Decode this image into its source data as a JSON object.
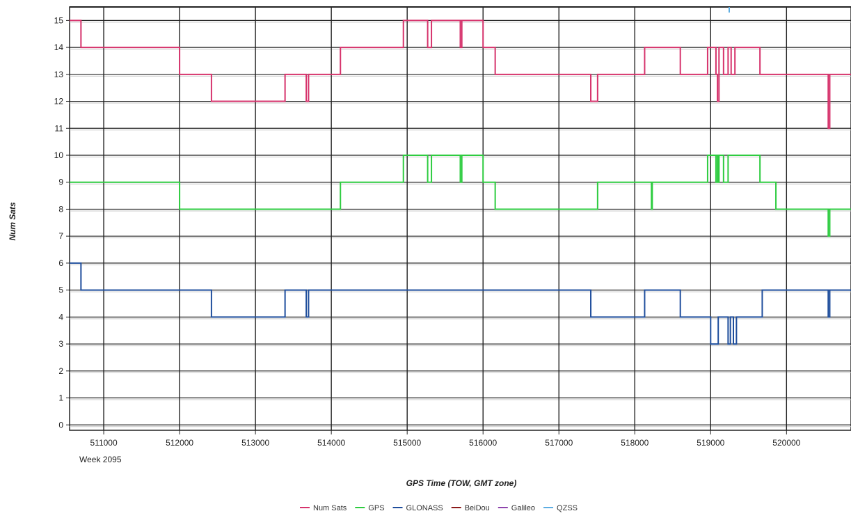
{
  "chart_data": {
    "type": "line",
    "title": "",
    "xlabel": "GPS Time (TOW, GMT zone)",
    "ylabel": "Num Sats",
    "week_label": "Week 2095",
    "xlim": [
      510550,
      520850
    ],
    "ylim": [
      -0.2,
      15.5
    ],
    "x_ticks": [
      511000,
      512000,
      513000,
      514000,
      515000,
      516000,
      517000,
      518000,
      519000,
      520000
    ],
    "x_tick_labels": [
      "511000",
      "512000",
      "513000",
      "514000",
      "515000",
      "516000",
      "517000",
      "518000",
      "519000",
      "520000"
    ],
    "y_ticks": [
      0,
      1,
      2,
      3,
      4,
      5,
      6,
      7,
      8,
      9,
      10,
      11,
      12,
      13,
      14,
      15
    ],
    "y_tick_labels": [
      "0",
      "1",
      "2",
      "3",
      "4",
      "5",
      "6",
      "7",
      "8",
      "9",
      "10",
      "11",
      "12",
      "13",
      "14",
      "15"
    ],
    "grid": true,
    "legend_position": "bottom-center",
    "series": [
      {
        "name": "Num Sats",
        "color": "#d6336c",
        "step": true,
        "x": [
          510550,
          510700,
          512000,
          512420,
          513390,
          513670,
          513700,
          514120,
          514950,
          515270,
          515320,
          515700,
          515720,
          515950,
          516000,
          516160,
          517420,
          517430,
          517510,
          518130,
          518220,
          518600,
          518960,
          519070,
          519090,
          519100,
          519110,
          519170,
          519230,
          519270,
          519320,
          519650,
          519860,
          520550,
          520570,
          520850
        ],
        "y": [
          15,
          14,
          13,
          12,
          13,
          12,
          13,
          14,
          15,
          14,
          15,
          14,
          15,
          15,
          14,
          13,
          12,
          12,
          13,
          14,
          14,
          13,
          14,
          13,
          12,
          12,
          14,
          13,
          14,
          13,
          14,
          13,
          13,
          11,
          13,
          13
        ]
      },
      {
        "name": "GPS",
        "color": "#2ecc40",
        "step": true,
        "x": [
          510550,
          512000,
          514120,
          514950,
          515270,
          515320,
          515700,
          515720,
          515950,
          516000,
          516160,
          517510,
          518220,
          518230,
          518960,
          519070,
          519090,
          519100,
          519110,
          519170,
          519230,
          519270,
          519650,
          519860,
          520550,
          520570,
          520850
        ],
        "y": [
          9,
          8,
          9,
          10,
          9,
          10,
          9,
          10,
          10,
          9,
          8,
          9,
          8,
          9,
          10,
          9,
          10,
          9,
          10,
          9,
          10,
          10,
          9,
          8,
          7,
          8,
          8
        ],
        "notes": ""
      },
      {
        "name": "GLONASS",
        "color": "#1f4e9c",
        "step": true,
        "x": [
          510550,
          510700,
          512420,
          513390,
          513670,
          513700,
          517420,
          518130,
          518600,
          519000,
          519100,
          519200,
          519230,
          519260,
          519300,
          519340,
          519680,
          520550,
          520570,
          520850
        ],
        "y": [
          6,
          5,
          4,
          5,
          4,
          5,
          4,
          5,
          4,
          3,
          4,
          4,
          3,
          4,
          3,
          4,
          5,
          4,
          5,
          5
        ]
      },
      {
        "name": "BeiDou",
        "color": "#8b1a1a",
        "x": [],
        "y": []
      },
      {
        "name": "Galileo",
        "color": "#8e44ad",
        "x": [],
        "y": []
      },
      {
        "name": "QZSS",
        "color": "#5dade2",
        "x": [],
        "y": []
      }
    ]
  }
}
